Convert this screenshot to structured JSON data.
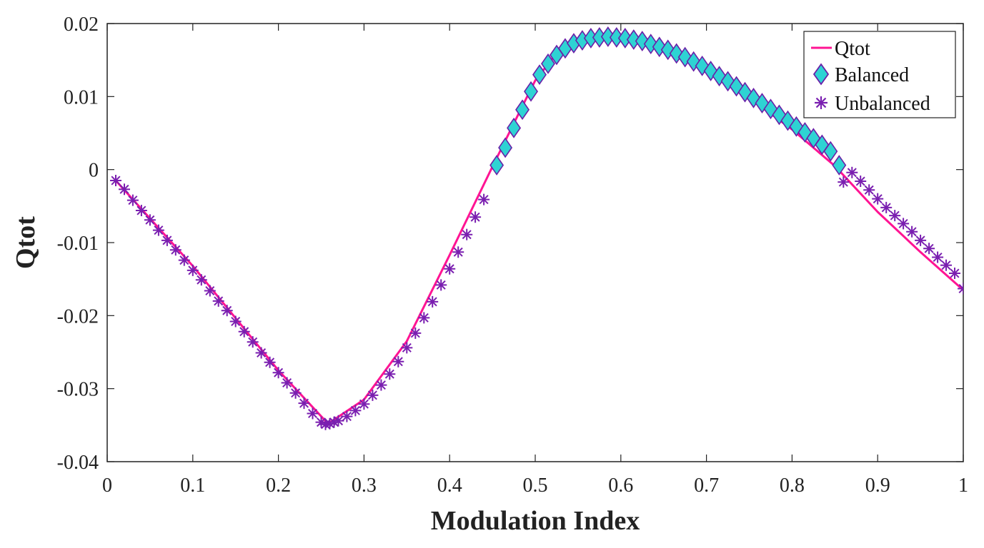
{
  "chart_data": {
    "type": "line",
    "title": "",
    "xlabel": "Modulation Index",
    "ylabel": "Qtot",
    "xlim": [
      0,
      1
    ],
    "ylim": [
      -0.04,
      0.02
    ],
    "xticks": [
      0,
      0.1,
      0.2,
      0.3,
      0.4,
      0.5,
      0.6,
      0.7,
      0.8,
      0.9,
      1
    ],
    "xtick_labels": [
      "0",
      "0.1",
      "0.2",
      "0.3",
      "0.4",
      "0.5",
      "0.6",
      "0.7",
      "0.8",
      "0.9",
      "1"
    ],
    "yticks": [
      0.02,
      0.01,
      0,
      -0.01,
      -0.02,
      -0.03,
      -0.04
    ],
    "ytick_labels": [
      "0.02",
      "0.01",
      "0",
      "-0.01",
      "-0.02",
      "-0.03",
      "-0.04"
    ],
    "grid": false,
    "legend": {
      "position": "top-right",
      "entries": [
        "Qtot",
        "Balanced",
        "Unbalanced"
      ]
    },
    "colors": {
      "qtot": "#ff1493",
      "balanced_fill": "#2ed3d3",
      "balanced_edge": "#6a1fa8",
      "unbalanced": "#7a1fb0"
    },
    "series": [
      {
        "name": "Qtot",
        "style": "line",
        "x": [
          0.01,
          0.1,
          0.2,
          0.258,
          0.3,
          0.35,
          0.4,
          0.45,
          0.48,
          0.5,
          0.52,
          0.55,
          0.58,
          0.6,
          0.65,
          0.7,
          0.75,
          0.8,
          0.85,
          0.9,
          0.95,
          1.0
        ],
        "y": [
          -0.0015,
          -0.0132,
          -0.0275,
          -0.0348,
          -0.0315,
          -0.0235,
          -0.0117,
          0.0004,
          0.0075,
          0.0122,
          0.0152,
          0.0172,
          0.0181,
          0.0179,
          0.0164,
          0.0136,
          0.0098,
          0.0055,
          0.0005,
          -0.0058,
          -0.0113,
          -0.0165
        ]
      },
      {
        "name": "Balanced",
        "style": "marker-diamond",
        "x": [
          0.455,
          0.465,
          0.475,
          0.485,
          0.495,
          0.505,
          0.515,
          0.525,
          0.535,
          0.545,
          0.555,
          0.565,
          0.575,
          0.585,
          0.595,
          0.605,
          0.615,
          0.625,
          0.635,
          0.645,
          0.655,
          0.665,
          0.675,
          0.685,
          0.695,
          0.705,
          0.715,
          0.725,
          0.735,
          0.745,
          0.755,
          0.765,
          0.775,
          0.785,
          0.795,
          0.805,
          0.815,
          0.825,
          0.835,
          0.845,
          0.855
        ],
        "y": [
          0.0006,
          0.003,
          0.0057,
          0.0082,
          0.0107,
          0.013,
          0.0145,
          0.0157,
          0.0166,
          0.0173,
          0.0177,
          0.018,
          0.0181,
          0.0182,
          0.0181,
          0.018,
          0.0178,
          0.0176,
          0.0172,
          0.0168,
          0.0164,
          0.0159,
          0.0154,
          0.0148,
          0.0142,
          0.0135,
          0.0128,
          0.0121,
          0.0114,
          0.0106,
          0.0098,
          0.0091,
          0.0083,
          0.0075,
          0.0067,
          0.0059,
          0.0051,
          0.0043,
          0.0034,
          0.0025,
          0.0006
        ]
      },
      {
        "name": "Unbalanced",
        "style": "marker-asterisk",
        "x": [
          0.01,
          0.02,
          0.03,
          0.04,
          0.05,
          0.06,
          0.07,
          0.08,
          0.09,
          0.1,
          0.11,
          0.12,
          0.13,
          0.14,
          0.15,
          0.16,
          0.17,
          0.18,
          0.19,
          0.2,
          0.21,
          0.22,
          0.23,
          0.24,
          0.25,
          0.255,
          0.26,
          0.265,
          0.27,
          0.28,
          0.29,
          0.3,
          0.31,
          0.32,
          0.33,
          0.34,
          0.35,
          0.36,
          0.37,
          0.38,
          0.39,
          0.4,
          0.41,
          0.42,
          0.43,
          0.44,
          0.86,
          0.87,
          0.88,
          0.89,
          0.9,
          0.91,
          0.92,
          0.93,
          0.94,
          0.95,
          0.96,
          0.97,
          0.98,
          0.99,
          1.0
        ],
        "y": [
          -0.0015,
          -0.0027,
          -0.0042,
          -0.0056,
          -0.0069,
          -0.0083,
          -0.0097,
          -0.011,
          -0.0124,
          -0.0138,
          -0.0151,
          -0.0166,
          -0.018,
          -0.0193,
          -0.0208,
          -0.0222,
          -0.0236,
          -0.0251,
          -0.0264,
          -0.0278,
          -0.0292,
          -0.0306,
          -0.032,
          -0.0334,
          -0.0346,
          -0.0349,
          -0.0348,
          -0.0346,
          -0.0344,
          -0.0338,
          -0.033,
          -0.0321,
          -0.0309,
          -0.0295,
          -0.028,
          -0.0263,
          -0.0244,
          -0.0224,
          -0.0203,
          -0.0181,
          -0.0158,
          -0.0136,
          -0.0113,
          -0.0089,
          -0.0065,
          -0.0041,
          -0.0017,
          -0.0004,
          -0.0016,
          -0.0028,
          -0.004,
          -0.0052,
          -0.0063,
          -0.0074,
          -0.0085,
          -0.0097,
          -0.0108,
          -0.012,
          -0.0131,
          -0.0142,
          -0.0163
        ]
      }
    ]
  }
}
